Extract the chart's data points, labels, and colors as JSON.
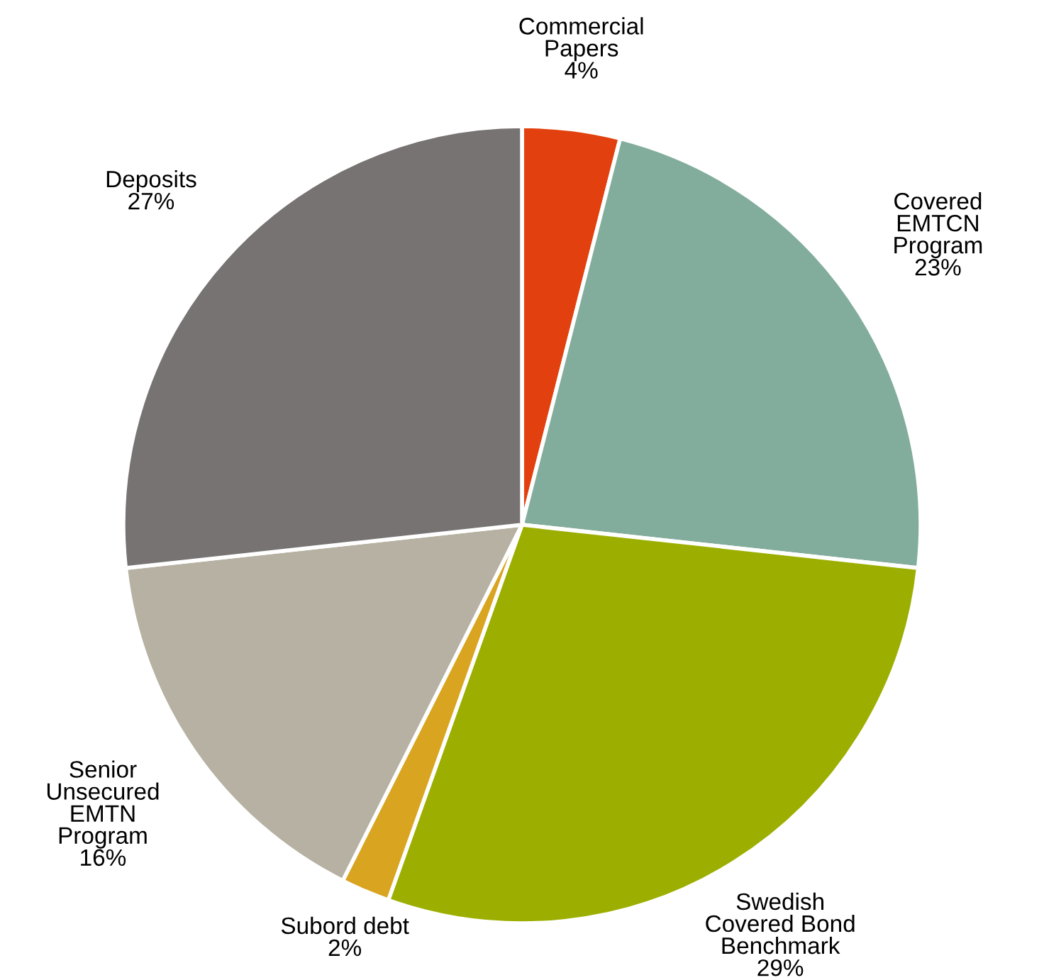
{
  "chart_data": {
    "type": "pie",
    "categories": [
      "Commercial\nPapers",
      "Covered\nEMTCN\nProgram",
      "Swedish\nCovered Bond\nBenchmark",
      "Subord debt",
      "Senior\nUnsecured\nEMTN\nProgram",
      "Deposits"
    ],
    "values": [
      4,
      23,
      29,
      2,
      16,
      27
    ],
    "value_labels": [
      "4%",
      "23%",
      "29%",
      "2%",
      "16%",
      "27%"
    ],
    "colors": [
      "#e2410f",
      "#82ad9c",
      "#9caf00",
      "#d9a520",
      "#b6b1a2",
      "#787373"
    ]
  }
}
